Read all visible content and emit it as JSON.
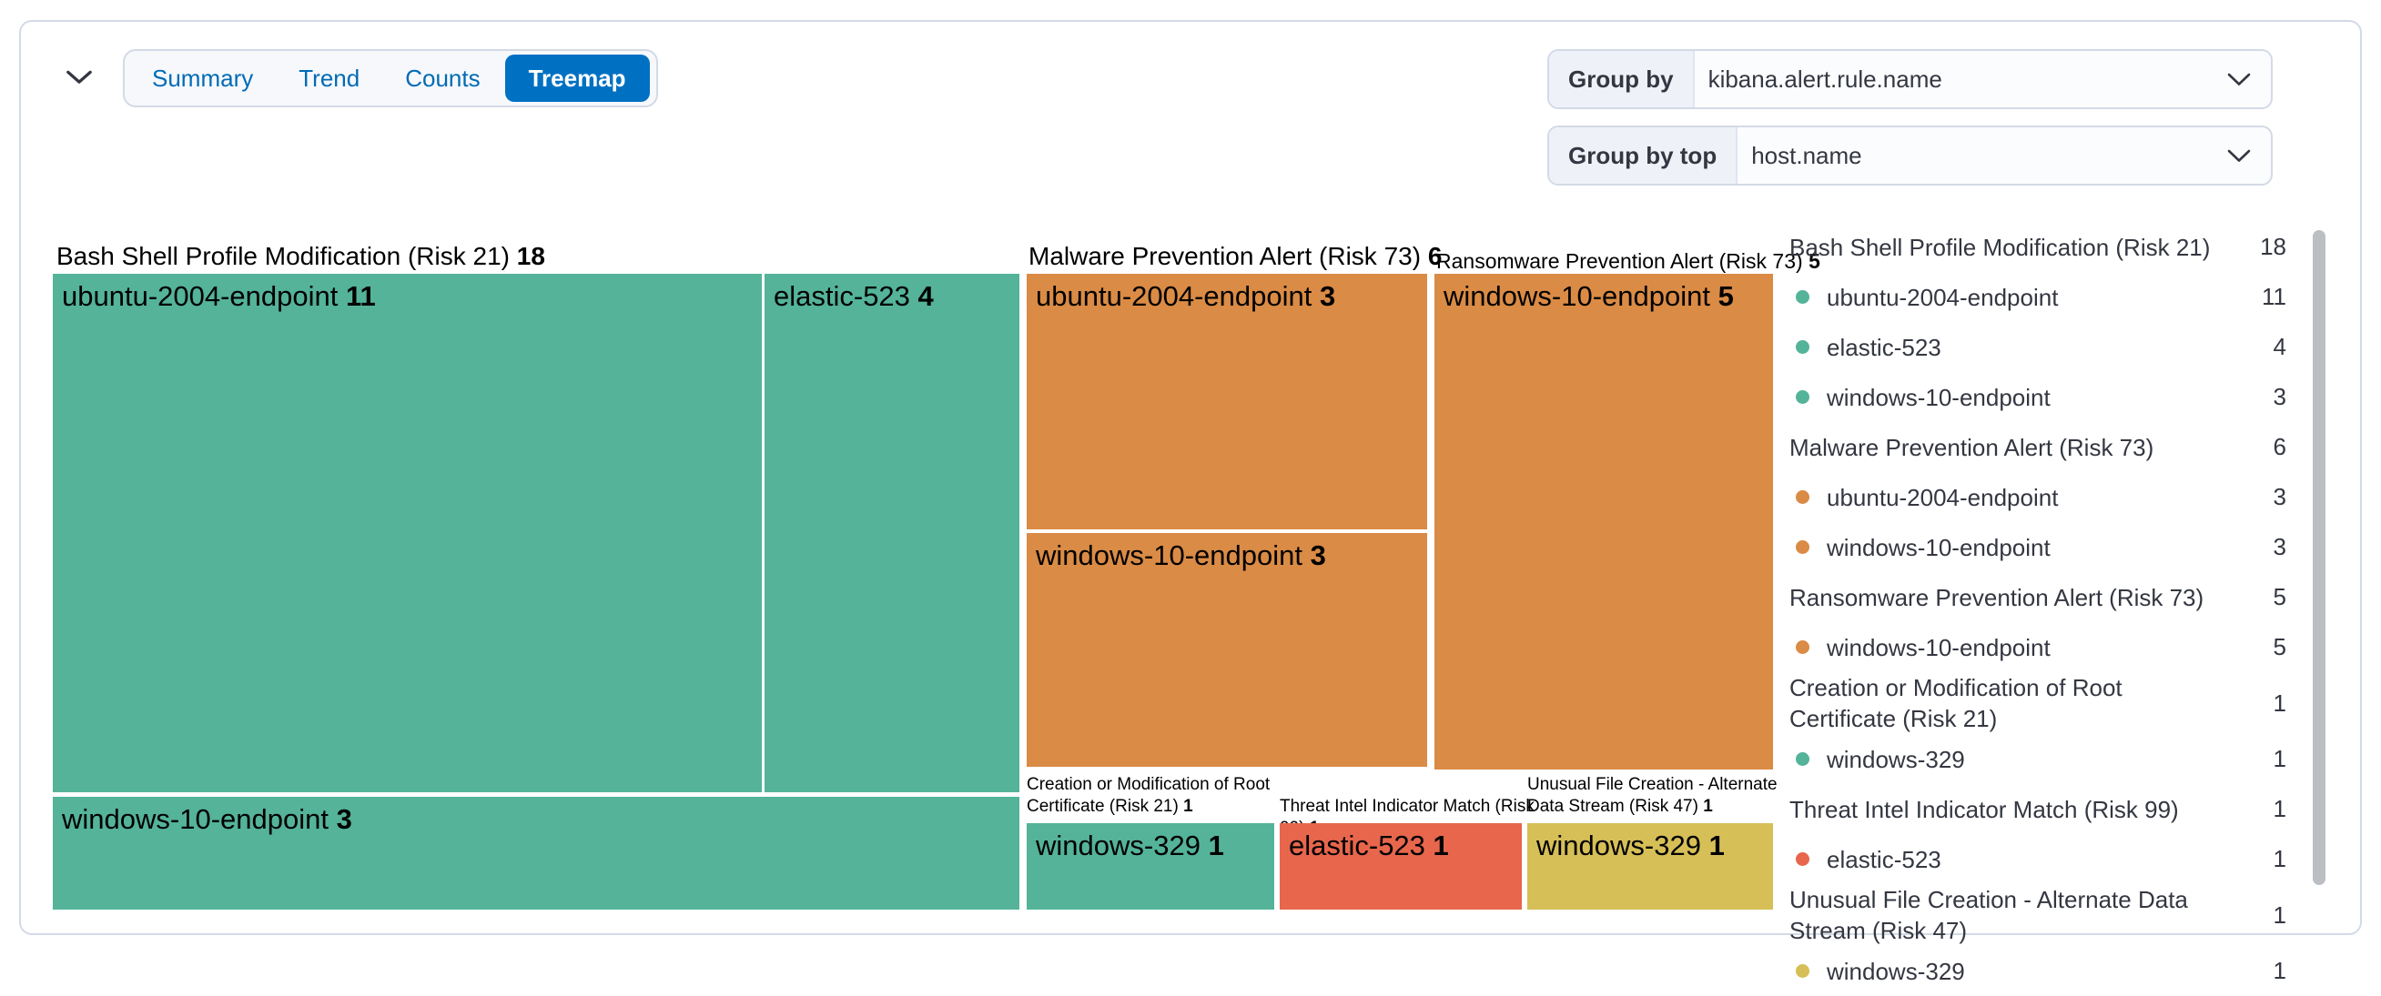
{
  "view_toggle": {
    "tabs": [
      {
        "label": "Summary",
        "selected": false
      },
      {
        "label": "Trend",
        "selected": false
      },
      {
        "label": "Counts",
        "selected": false
      },
      {
        "label": "Treemap",
        "selected": true
      }
    ]
  },
  "controls": {
    "group_by": {
      "label": "Group by",
      "value": "kibana.alert.rule.name"
    },
    "group_by_top": {
      "label": "Group by top",
      "value": "host.name"
    }
  },
  "colors": {
    "green": "#54B399",
    "orange": "#DA8B45",
    "red": "#E7664C",
    "yellow": "#D6BF57",
    "accent_blue": "#0071C2"
  },
  "chart_data": {
    "type": "treemap",
    "group_by_field": "kibana.alert.rule.name",
    "group_by_top_field": "host.name",
    "groups": [
      {
        "name": "Bash Shell Profile Modification (Risk 21)",
        "value": 18,
        "color": "#54B399",
        "children": [
          {
            "name": "ubuntu-2004-endpoint",
            "value": 11
          },
          {
            "name": "elastic-523",
            "value": 4
          },
          {
            "name": "windows-10-endpoint",
            "value": 3
          }
        ]
      },
      {
        "name": "Malware Prevention Alert (Risk 73)",
        "value": 6,
        "color": "#DA8B45",
        "children": [
          {
            "name": "ubuntu-2004-endpoint",
            "value": 3
          },
          {
            "name": "windows-10-endpoint",
            "value": 3
          }
        ]
      },
      {
        "name": "Ransomware Prevention Alert (Risk 73)",
        "value": 5,
        "color": "#DA8B45",
        "children": [
          {
            "name": "windows-10-endpoint",
            "value": 5
          }
        ]
      },
      {
        "name": "Creation or Modification of Root Certificate (Risk 21)",
        "value": 1,
        "color": "#54B399",
        "children": [
          {
            "name": "windows-329",
            "value": 1
          }
        ]
      },
      {
        "name": "Threat Intel Indicator Match (Risk 99)",
        "value": 1,
        "color": "#E7664C",
        "children": [
          {
            "name": "elastic-523",
            "value": 1
          }
        ]
      },
      {
        "name": "Unusual File Creation - Alternate Data Stream (Risk 47)",
        "value": 1,
        "color": "#D6BF57",
        "children": [
          {
            "name": "windows-329",
            "value": 1
          }
        ]
      }
    ]
  }
}
